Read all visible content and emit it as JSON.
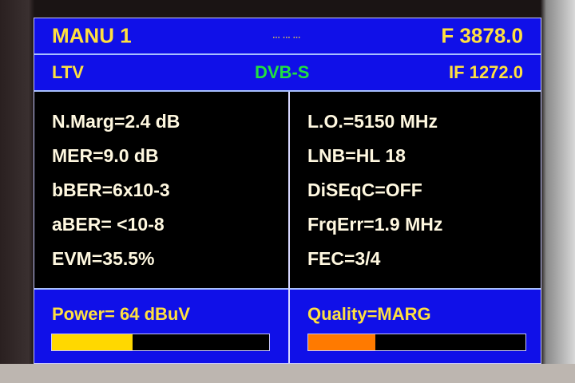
{
  "header": {
    "mode": "MANU 1",
    "indicator": "… … …",
    "frequency": "F 3878.0"
  },
  "subheader": {
    "channel": "LTV",
    "standard": "DVB-S",
    "if_freq": "IF 1272.0"
  },
  "left_params": [
    "N.Marg=2.4 dB",
    "MER=9.0 dB",
    "bBER=6x10-3",
    "aBER= <10-8",
    "EVM=35.5%"
  ],
  "right_params": [
    "L.O.=5150 MHz",
    "LNB=HL 18",
    "DiSEqC=OFF",
    "FrqErr=1.9 MHz",
    "FEC=3/4"
  ],
  "power": {
    "label": "Power= 64 dBuV",
    "level": 0.37,
    "color": "#ffd800"
  },
  "quality": {
    "label": "Quality=MARG",
    "level": 0.31,
    "color": "#ff7a00"
  },
  "colors": {
    "panel": "#1010e8",
    "header_text": "#ffe040",
    "standard_text": "#20e040"
  }
}
